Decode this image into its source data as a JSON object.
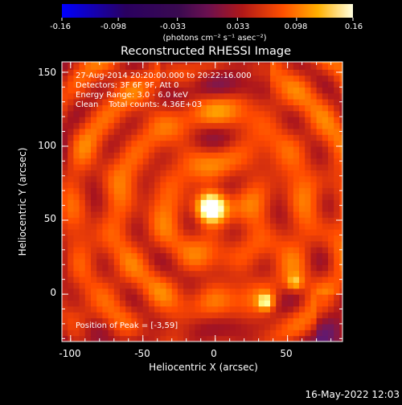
{
  "colorbar": {
    "ticks": [
      "-0.16",
      "-0.098",
      "-0.033",
      "0.033",
      "0.098",
      "0.16"
    ],
    "tick_values": [
      -0.16,
      -0.098,
      -0.033,
      0.033,
      0.098,
      0.16
    ],
    "range": [
      -0.16,
      0.16
    ],
    "unit_label": "(photons cm⁻² s⁻¹ asec⁻²)"
  },
  "chart_data": {
    "type": "heatmap",
    "title": "Reconstructed RHESSI Image",
    "xlabel": "Heliocentric X (arcsec)",
    "ylabel": "Heliocentric Y (arcsec)",
    "xlim": [
      -106,
      88
    ],
    "ylim": [
      -32,
      157
    ],
    "xticks": [
      -100,
      -50,
      0,
      50
    ],
    "yticks": [
      0,
      50,
      100,
      150
    ],
    "peak": {
      "x": -3,
      "y": 59
    },
    "sources": [
      {
        "x": -3,
        "y": 59,
        "intensity": 0.16
      },
      {
        "x": 35,
        "y": -5,
        "intensity": 0.09
      },
      {
        "x": 55,
        "y": 8,
        "intensity": 0.07
      }
    ],
    "colormap": [
      "#0000ff",
      "#000000",
      "#5a1a78",
      "#a8141e",
      "#ff4a00",
      "#ffa000",
      "#ffff8c",
      "#ffffff"
    ],
    "annotations": [
      "27-Aug-2014 20:20:00.000 to 20:22:16.000",
      "Detectors: 3F 6F 9F, Att 0",
      "Energy Range: 3.0 - 6.0 keV",
      "Clean    Total counts: 4.36E+03"
    ],
    "peak_label": "Position of Peak = [-3,59]"
  },
  "footer": {
    "timestamp": "16-May-2022 12:03"
  }
}
